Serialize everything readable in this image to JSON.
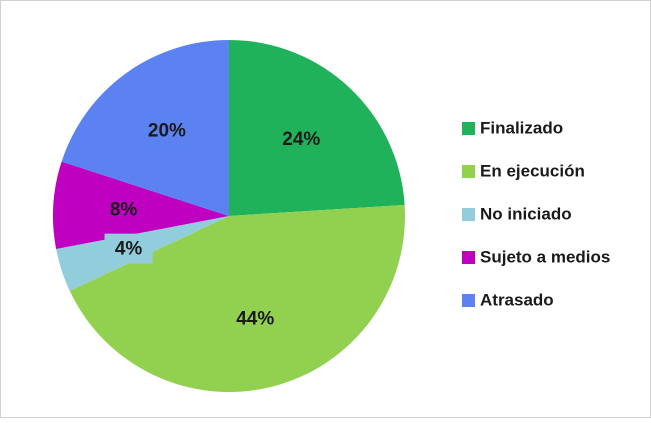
{
  "chart_data": {
    "type": "pie",
    "categories": [
      "Finalizado",
      "En ejecución",
      "No iniciado",
      "Sujeto a medios",
      "Atrasado"
    ],
    "values": [
      24,
      44,
      4,
      8,
      20
    ],
    "value_labels": [
      "24%",
      "44%",
      "4%",
      "8%",
      "20%"
    ],
    "colors": [
      "#1fb25a",
      "#92d050",
      "#92cddc",
      "#c000c0",
      "#5b82f0"
    ],
    "legend": "right"
  }
}
